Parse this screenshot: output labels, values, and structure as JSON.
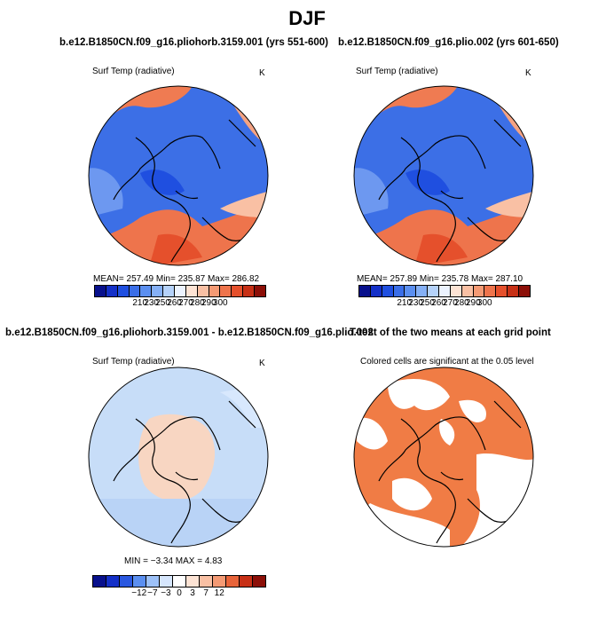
{
  "figure": {
    "title": "DJF"
  },
  "panels": [
    {
      "id": "p1",
      "title": "b.e12.B1850CN.f09_g16.pliohorb.3159.001 (yrs 551-600)",
      "variable": "Surf Temp (radiative)",
      "units": "K",
      "stats": "MEAN= 257.49   Min= 235.87   Max= 286.82"
    },
    {
      "id": "p2",
      "title": "b.e12.B1850CN.f09_g16.plio.002 (yrs 601-650)",
      "variable": "Surf Temp (radiative)",
      "units": "K",
      "stats": "MEAN= 257.89   Min= 235.78   Max= 287.10"
    },
    {
      "id": "p3",
      "title": "b.e12.B1850CN.f09_g16.pliohorb.3159.001 - b.e12.B1850CN.f09_g16.plio.002",
      "variable": "Surf Temp (radiative)",
      "units": "K",
      "stats": "MIN =  −3.34  MAX =   4.83"
    },
    {
      "id": "p4",
      "title": "T-test of the two means at each grid point",
      "variable": "Colored cells are significant at the 0.05 level"
    }
  ],
  "colorbars": {
    "absolute": {
      "labels": [
        "210",
        "230",
        "250",
        "260",
        "270",
        "280",
        "290",
        "300"
      ],
      "colors": [
        "#08108c",
        "#1430c8",
        "#1f4fe0",
        "#3a6ee8",
        "#5b8ff0",
        "#85b0f6",
        "#b5d2fa",
        "#ecf3ff",
        "#fde3d4",
        "#f9c0a4",
        "#f49a74",
        "#ee744c",
        "#e5502c",
        "#c73016",
        "#8c0f08"
      ]
    },
    "difference": {
      "labels": [
        "−12",
        "−7",
        "−3",
        "0",
        "3",
        "7",
        "12"
      ],
      "colors": [
        "#08108c",
        "#1430c8",
        "#2a58e0",
        "#5b8ff0",
        "#9dc1f8",
        "#d6e6fd",
        "#ffffff",
        "#fde3d4",
        "#f9c0a4",
        "#f49a74",
        "#e8643a",
        "#c73016",
        "#8c0f08"
      ]
    }
  },
  "colors": {
    "cold": "#4a78e6",
    "warm": "#ee744c",
    "significant": "#f07c45",
    "diff_cool": "#c7ddf8",
    "diff_warm": "#f8d6c2"
  }
}
